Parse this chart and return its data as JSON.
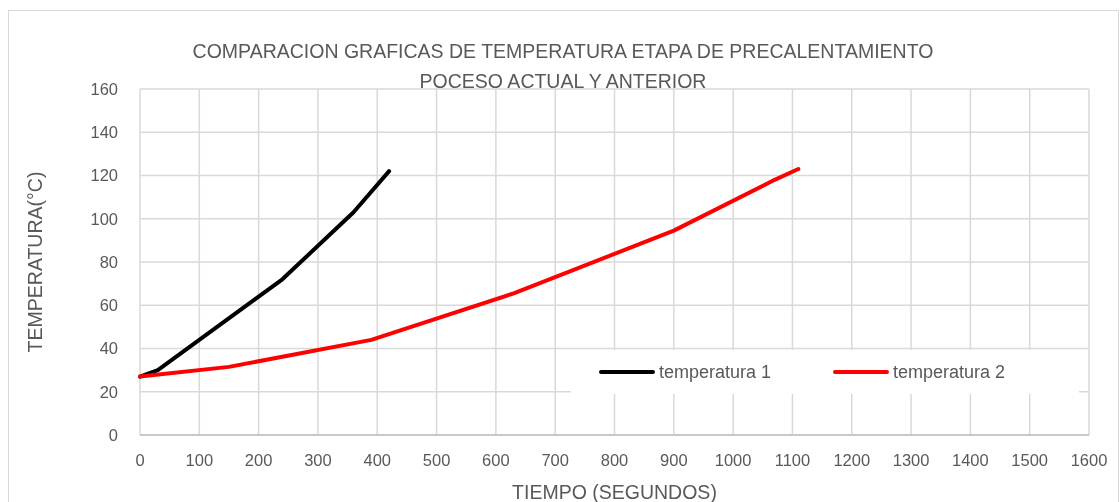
{
  "chart_data": {
    "type": "line",
    "title": "COMPARACION GRAFICAS DE TEMPERATURA ETAPA DE PRECALENTAMIENTO POCESO ACTUAL Y ANTERIOR",
    "xlabel": "TIEMPO (SEGUNDOS)",
    "ylabel": "TEMPERATURA(°C)",
    "xlim": [
      0,
      1600
    ],
    "xticks": [
      0,
      100,
      200,
      300,
      400,
      500,
      600,
      700,
      800,
      900,
      1000,
      1100,
      1200,
      1300,
      1400,
      1500,
      1600
    ],
    "ylim": [
      0,
      160
    ],
    "yticks": [
      0,
      20,
      40,
      60,
      80,
      100,
      120,
      140,
      160
    ],
    "grid": true,
    "legend": "bottom right",
    "series": [
      {
        "name": "temperatura 1",
        "color": "#000000",
        "x": [
          0,
          30,
          240,
          360,
          420
        ],
        "values": [
          27,
          30,
          72,
          103,
          122
        ]
      },
      {
        "name": "temperatura 2",
        "color": "#ff0000",
        "x": [
          0,
          150,
          390,
          630,
          900,
          1070,
          1110
        ],
        "values": [
          27,
          31.5,
          44,
          65.5,
          94.5,
          118,
          123
        ]
      }
    ]
  }
}
